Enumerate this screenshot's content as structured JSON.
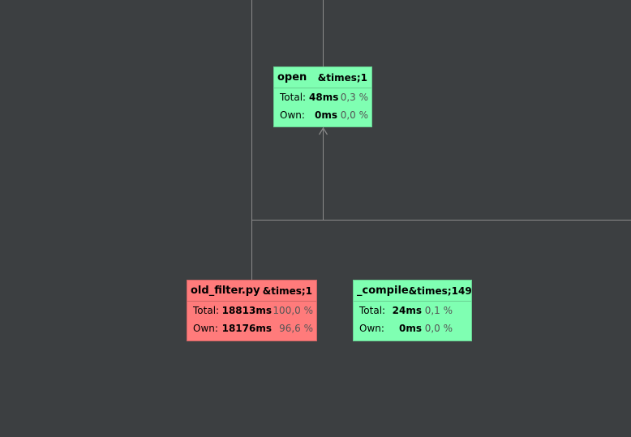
{
  "nodes": [
    {
      "id": "open",
      "name": "open",
      "count": "&times;1",
      "total_label": "Total:",
      "total_ms": "48ms",
      "total_pct": "0,3 %",
      "own_label": "Own:",
      "own_ms": "0ms",
      "own_pct": "0,0 %",
      "color": "#7fffb2"
    },
    {
      "id": "old_filter",
      "name": "old_filter.py",
      "count": "&times;1",
      "total_label": "Total:",
      "total_ms": "18813ms",
      "total_pct": "100,0 %",
      "own_label": "Own:",
      "own_ms": "18176ms",
      "own_pct": "96,6 %",
      "color": "#ff7b7b"
    },
    {
      "id": "compile",
      "name": "_compile",
      "count": "&times;149",
      "total_label": "Total:",
      "total_ms": "24ms",
      "total_pct": "0,1 %",
      "own_label": "Own:",
      "own_ms": "0ms",
      "own_pct": "0,0 %",
      "color": "#7fffb2"
    }
  ]
}
